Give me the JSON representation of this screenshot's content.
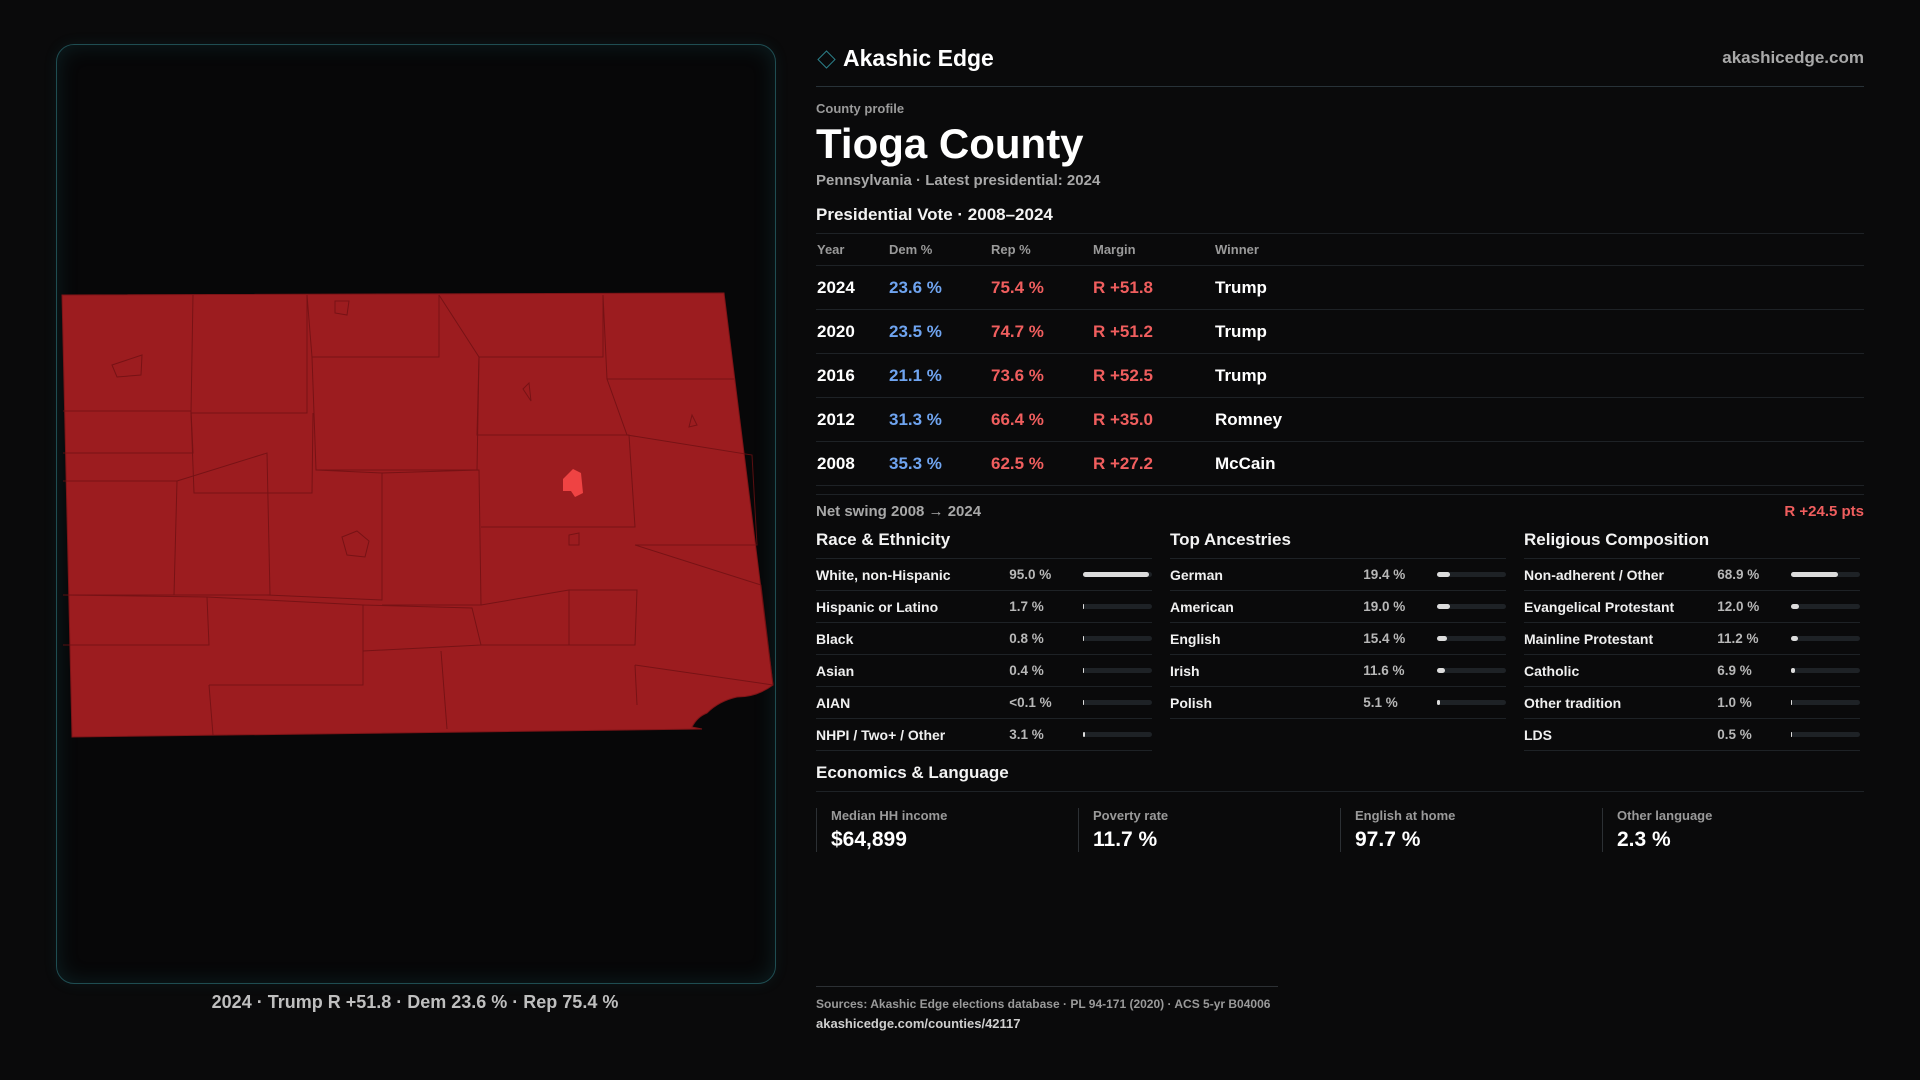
{
  "map": {
    "caption": "2024 · Trump R +51.8 · Dem 23.6 % · Rep 75.4 %",
    "fill_color": "#9c1c1f",
    "highlight_color": "#ef4343"
  },
  "header": {
    "brand": "Akashic Edge",
    "site": "akashicedge.com",
    "brand_icon": "diamond-icon"
  },
  "profile": {
    "eyebrow": "County profile",
    "title": "Tioga County",
    "subtitle": "Pennsylvania · Latest presidential: 2024"
  },
  "vote": {
    "title": "Presidential Vote · 2008–2024",
    "headers": [
      "Year",
      "Dem %",
      "Rep %",
      "Margin",
      "Winner"
    ],
    "rows": [
      {
        "year": "2024",
        "dem": "23.6 %",
        "rep": "75.4 %",
        "margin": "R +51.8",
        "winner": "Trump"
      },
      {
        "year": "2020",
        "dem": "23.5 %",
        "rep": "74.7 %",
        "margin": "R +51.2",
        "winner": "Trump"
      },
      {
        "year": "2016",
        "dem": "21.1 %",
        "rep": "73.6 %",
        "margin": "R +52.5",
        "winner": "Trump"
      },
      {
        "year": "2012",
        "dem": "31.3 %",
        "rep": "66.4 %",
        "margin": "R +35.0",
        "winner": "Romney"
      },
      {
        "year": "2008",
        "dem": "35.3 %",
        "rep": "62.5 %",
        "margin": "R +27.2",
        "winner": "McCain"
      }
    ],
    "swing_label": "Net swing 2008 → 2024",
    "swing_value": "R +24.5 pts"
  },
  "race": {
    "title": "Race & Ethnicity",
    "rows": [
      {
        "name": "White, non-Hispanic",
        "pct": "95.0 %",
        "value": 0.95
      },
      {
        "name": "Hispanic or Latino",
        "pct": "1.7 %",
        "value": 0.017
      },
      {
        "name": "Black",
        "pct": "0.8 %",
        "value": 0.008
      },
      {
        "name": "Asian",
        "pct": "0.4 %",
        "value": 0.004
      },
      {
        "name": "AIAN",
        "pct": "<0.1 %",
        "value": 0.0005
      },
      {
        "name": "NHPI / Two+ / Other",
        "pct": "3.1 %",
        "value": 0.031
      }
    ]
  },
  "ancestry": {
    "title": "Top Ancestries",
    "rows": [
      {
        "name": "German",
        "pct": "19.4 %",
        "value": 0.194
      },
      {
        "name": "American",
        "pct": "19.0 %",
        "value": 0.19
      },
      {
        "name": "English",
        "pct": "15.4 %",
        "value": 0.154
      },
      {
        "name": "Irish",
        "pct": "11.6 %",
        "value": 0.116
      },
      {
        "name": "Polish",
        "pct": "5.1 %",
        "value": 0.051
      }
    ]
  },
  "religion": {
    "title": "Religious Composition",
    "rows": [
      {
        "name": "Non-adherent / Other",
        "pct": "68.9 %",
        "value": 0.689
      },
      {
        "name": "Evangelical Protestant",
        "pct": "12.0 %",
        "value": 0.12
      },
      {
        "name": "Mainline Protestant",
        "pct": "11.2 %",
        "value": 0.112
      },
      {
        "name": "Catholic",
        "pct": "6.9 %",
        "value": 0.069
      },
      {
        "name": "Other tradition",
        "pct": "1.0 %",
        "value": 0.01
      },
      {
        "name": "LDS",
        "pct": "0.5 %",
        "value": 0.005
      }
    ]
  },
  "economics": {
    "title": "Economics & Language",
    "stats": [
      {
        "label": "Median HH income",
        "value": "$64,899"
      },
      {
        "label": "Poverty rate",
        "value": "11.7 %"
      },
      {
        "label": "English at home",
        "value": "97.7 %"
      },
      {
        "label": "Other language",
        "value": "2.3 %"
      }
    ]
  },
  "footer": {
    "sources": "Sources: Akashic Edge elections database · PL 94-171 (2020) · ACS 5-yr B04006",
    "url": "akashicedge.com/counties/42117"
  },
  "colors": {
    "dem": "#6fa4f0",
    "rep": "#f05e5e",
    "panel_border": "#1f4d52"
  }
}
